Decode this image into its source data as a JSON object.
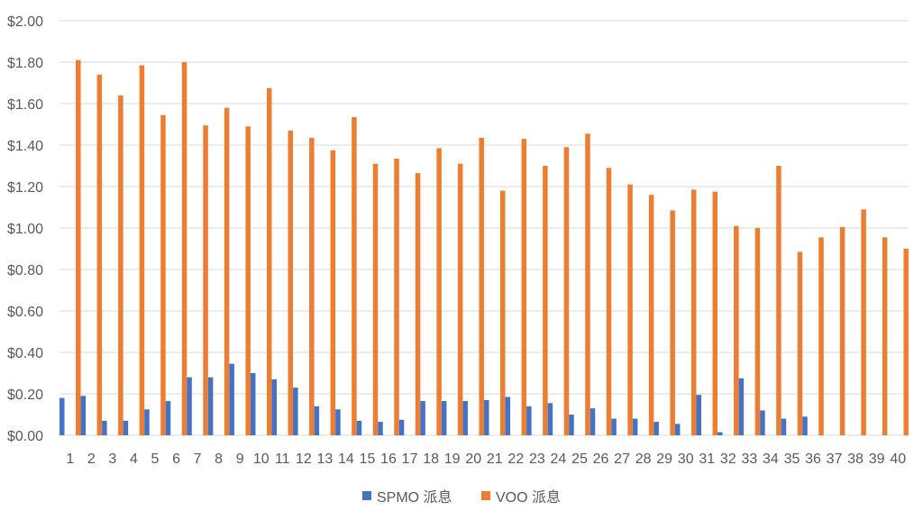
{
  "chart_data": {
    "type": "bar",
    "title": "",
    "xlabel": "",
    "ylabel": "",
    "ylim": [
      0,
      2.0
    ],
    "y_ticks": [
      "$0.00",
      "$0.20",
      "$0.40",
      "$0.60",
      "$0.80",
      "$1.00",
      "$1.20",
      "$1.40",
      "$1.60",
      "$1.80",
      "$2.00"
    ],
    "y_tick_values": [
      0,
      0.2,
      0.4,
      0.6,
      0.8,
      1.0,
      1.2,
      1.4,
      1.6,
      1.8,
      2.0
    ],
    "grid": true,
    "legend_position": "bottom",
    "categories": [
      "1",
      "2",
      "3",
      "4",
      "5",
      "6",
      "7",
      "8",
      "9",
      "10",
      "11",
      "12",
      "13",
      "14",
      "15",
      "16",
      "17",
      "18",
      "19",
      "20",
      "21",
      "22",
      "23",
      "24",
      "25",
      "26",
      "27",
      "28",
      "29",
      "30",
      "31",
      "32",
      "33",
      "34",
      "35",
      "36",
      "37",
      "38",
      "39",
      "40"
    ],
    "series": [
      {
        "name": "SPMO 派息",
        "color": "#4472C4",
        "values": [
          0.18,
          0.19,
          0.07,
          0.07,
          0.125,
          0.165,
          0.28,
          0.28,
          0.345,
          0.3,
          0.27,
          0.23,
          0.14,
          0.125,
          0.07,
          0.065,
          0.075,
          0.165,
          0.165,
          0.165,
          0.17,
          0.185,
          0.14,
          0.155,
          0.1,
          0.13,
          0.08,
          0.08,
          0.065,
          0.055,
          0.195,
          0.015,
          0.275,
          0.12,
          0.08,
          0.09,
          0,
          0,
          0,
          0
        ]
      },
      {
        "name": "VOO 派息",
        "color": "#ED7D31",
        "values": [
          1.81,
          1.74,
          1.64,
          1.785,
          1.545,
          1.8,
          1.495,
          1.58,
          1.49,
          1.675,
          1.47,
          1.435,
          1.375,
          1.535,
          1.31,
          1.335,
          1.265,
          1.385,
          1.31,
          1.435,
          1.18,
          1.43,
          1.3,
          1.39,
          1.455,
          1.29,
          1.21,
          1.16,
          1.085,
          1.185,
          1.175,
          1.01,
          1.0,
          1.3,
          0.885,
          0.955,
          1.005,
          1.09,
          0.955,
          0.9
        ]
      }
    ]
  }
}
